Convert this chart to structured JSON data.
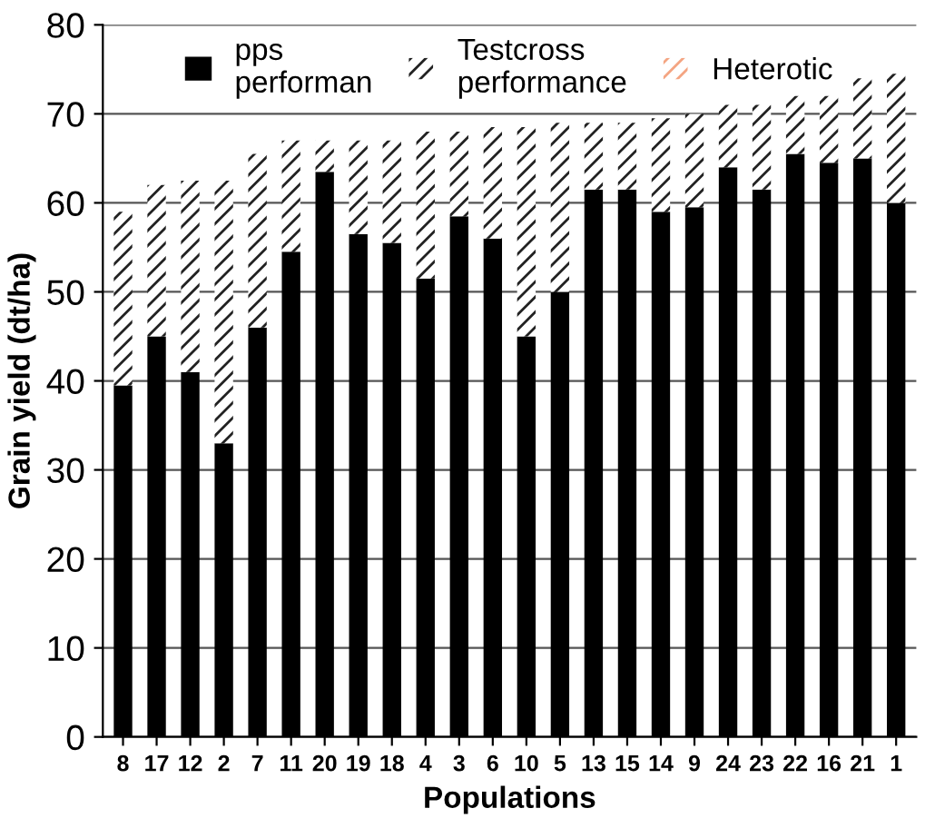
{
  "chart_data": {
    "type": "bar",
    "stacked": true,
    "xlabel": "Populations",
    "ylabel": "Grain yield (dt/ha)",
    "categories": [
      "8",
      "17",
      "12",
      "2",
      "7",
      "11",
      "20",
      "19",
      "18",
      "4",
      "3",
      "6",
      "10",
      "5",
      "13",
      "15",
      "14",
      "9",
      "24",
      "23",
      "22",
      "16",
      "21",
      "1"
    ],
    "series": [
      {
        "name": "pps\nperforman",
        "color": "#000000",
        "values": [
          39.5,
          45,
          41,
          33,
          46,
          54.5,
          63.5,
          56.5,
          55.5,
          51.5,
          58.5,
          56,
          45,
          50,
          61.5,
          61.5,
          59,
          59.5,
          64,
          61.5,
          65.5,
          64.5,
          65,
          60
        ]
      },
      {
        "name": "Testcross\nperformance",
        "color": "#222222",
        "values": [
          19.5,
          17,
          21.5,
          29.5,
          19.5,
          12.5,
          3.5,
          10.5,
          11.5,
          16.5,
          9.5,
          12.5,
          23.5,
          19,
          7.5,
          7.5,
          10.5,
          10.5,
          7,
          9.5,
          6.5,
          7.5,
          9,
          14.5
        ]
      },
      {
        "name": "Heterotic",
        "color": "#f4a582",
        "values": [
          null,
          null,
          null,
          null,
          null,
          null,
          null,
          null,
          null,
          null,
          null,
          null,
          null,
          null,
          null,
          null,
          null,
          null,
          null,
          null,
          null,
          null,
          null,
          null
        ]
      }
    ],
    "ylim": [
      0,
      80
    ],
    "yticks": [
      0,
      10,
      20,
      30,
      40,
      50,
      60,
      70,
      80
    ],
    "grid": "y",
    "legend": "top"
  }
}
